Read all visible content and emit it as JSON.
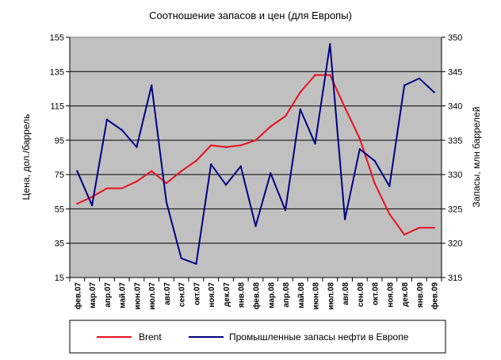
{
  "chart_data": {
    "type": "line",
    "title": "Соотношение запасов и цен (для Европы)",
    "xlabel": "",
    "ylabel": "Цена, дол./баррель",
    "y2label": "Запасы, млн баррелей",
    "ylim": [
      15,
      155
    ],
    "y2lim": [
      315,
      350
    ],
    "yticks": [
      15,
      35,
      55,
      75,
      95,
      115,
      135,
      155
    ],
    "y2ticks": [
      315,
      320,
      325,
      330,
      335,
      340,
      345,
      350
    ],
    "grid": true,
    "plot_background": "#c0c0c0",
    "legend_position": "bottom",
    "categories": [
      "фев.07",
      "мар.07",
      "апр.07",
      "май.07",
      "июн.07",
      "июл.07",
      "авг.07",
      "сен.07",
      "окт.07",
      "ноя.07",
      "дек.07",
      "янв.08",
      "фев.08",
      "мар.08",
      "апр.08",
      "май.08",
      "июн.08",
      "июл.08",
      "авг.08",
      "сен.08",
      "окт.08",
      "ноя.08",
      "дек.08",
      "янв.09",
      "фев.09"
    ],
    "series": [
      {
        "name": "Brent",
        "axis": "left",
        "color": "#e8111e",
        "values": [
          58,
          62,
          67,
          67,
          71,
          77,
          70,
          77,
          83,
          92,
          91,
          92,
          95,
          103,
          109,
          123,
          133,
          133,
          114,
          96,
          70,
          52,
          40,
          44,
          44
        ]
      },
      {
        "name": "Промышленные запасы нефти в Европе",
        "axis": "right",
        "color": "#000080",
        "values": [
          330.5,
          325.5,
          338,
          336.5,
          334,
          343,
          326,
          317.8,
          317,
          331.5,
          328.5,
          331.2,
          322.5,
          330.2,
          324.8,
          339.5,
          334.5,
          349,
          323.5,
          333.7,
          332,
          328.3,
          343,
          344,
          342
        ]
      }
    ]
  }
}
